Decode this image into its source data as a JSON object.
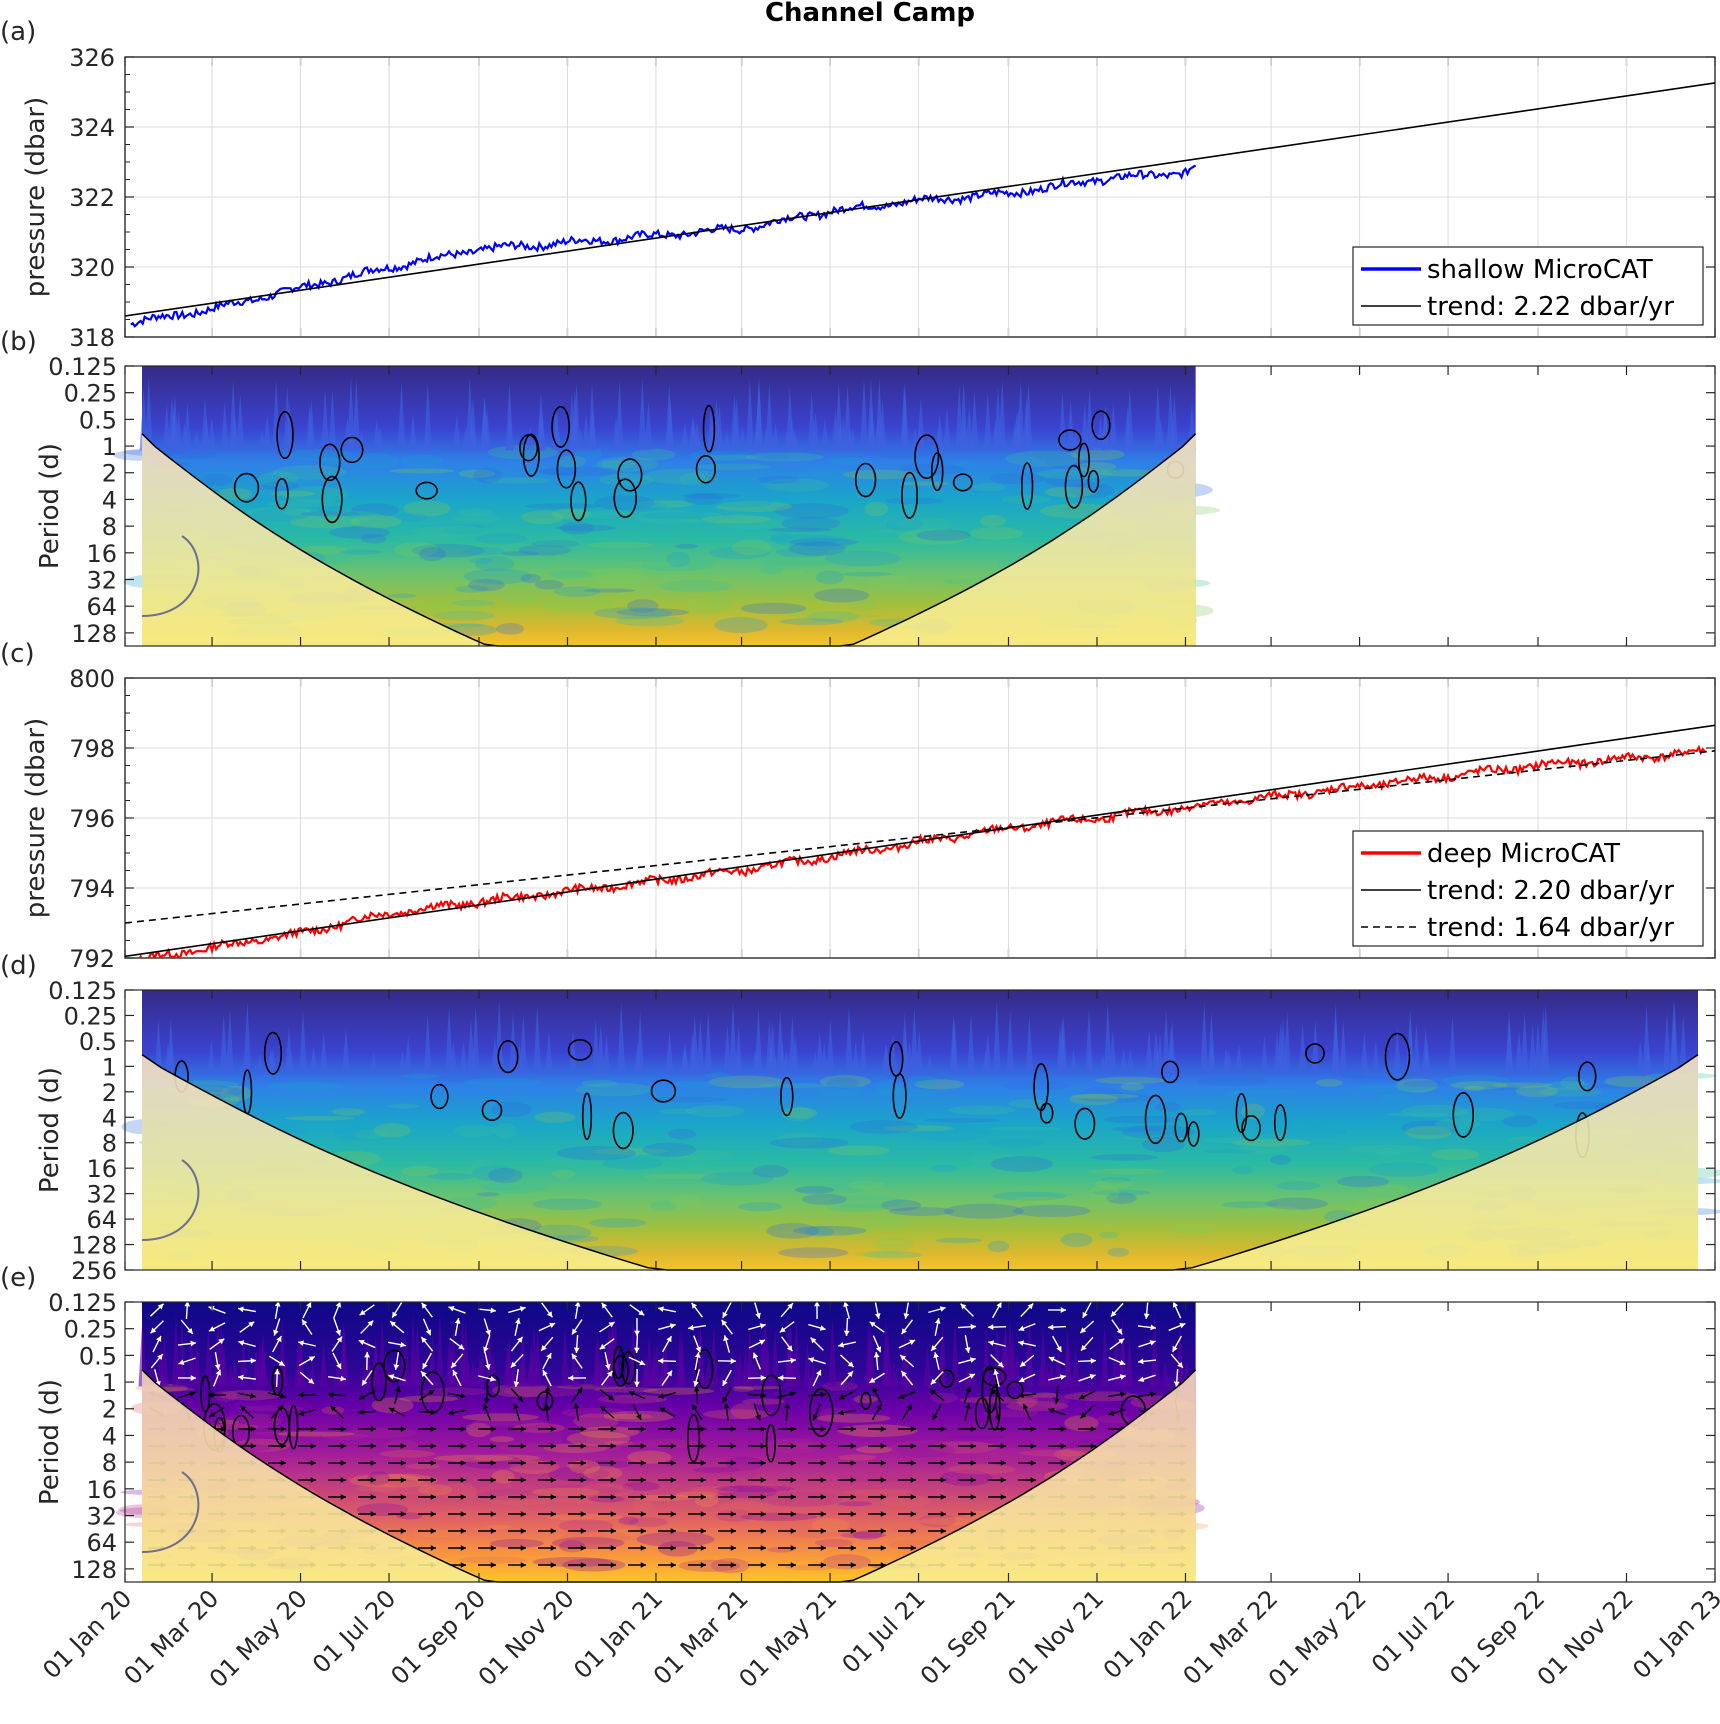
{
  "title": "Channel Camp",
  "x_ticks": [
    "01 Jan 20",
    "01 Mar 20",
    "01 May 20",
    "01 Jul 20",
    "01 Sep 20",
    "01 Nov 20",
    "01 Jan 21",
    "01 Mar 21",
    "01 May 21",
    "01 Jul 21",
    "01 Sep 21",
    "01 Nov 21",
    "01 Jan 22",
    "01 Mar 22",
    "01 May 22",
    "01 Jul 22",
    "01 Sep 22",
    "01 Nov 22",
    "01 Jan 23"
  ],
  "panels": {
    "a": {
      "label": "(a)"
    },
    "b": {
      "label": "(b)"
    },
    "c": {
      "label": "(c)"
    },
    "d": {
      "label": "(d)"
    },
    "e": {
      "label": "(e)"
    }
  },
  "chart_data": [
    {
      "id": "a",
      "type": "line",
      "ylabel": "pressure (dbar)",
      "ylim": [
        318,
        326
      ],
      "yticks": [
        "318",
        "320",
        "322",
        "324",
        "326"
      ],
      "xlim": [
        "2020-01-01",
        "2023-01-01"
      ],
      "grid": true,
      "legend_position": "bottom-right",
      "series": [
        {
          "name": "shallow MicroCAT",
          "color": "#0000ff",
          "x": [
            "2020-01-05",
            "2020-03-01",
            "2020-05-01",
            "2020-07-01",
            "2020-09-01",
            "2020-11-01",
            "2021-01-01",
            "2021-03-01",
            "2021-05-01",
            "2021-07-01",
            "2021-09-01",
            "2021-11-01",
            "2022-01-01",
            "2022-01-08"
          ],
          "y": [
            318.4,
            318.8,
            319.4,
            320.0,
            320.5,
            320.7,
            320.9,
            321.1,
            321.6,
            321.9,
            322.1,
            322.5,
            322.7,
            322.9
          ]
        },
        {
          "name": "trend: 2.22 dbar/yr",
          "color": "#000000",
          "dash": "solid",
          "x": [
            "2020-01-01",
            "2023-01-01"
          ],
          "y": [
            318.6,
            325.26
          ]
        }
      ]
    },
    {
      "id": "b",
      "type": "heatmap",
      "ylabel": "Period (d)",
      "yticks": [
        "0.125",
        "0.25",
        "0.5",
        "1",
        "2",
        "4",
        "8",
        "16",
        "32",
        "64",
        "128"
      ],
      "ylim": [
        0.125,
        180
      ],
      "y_scale": "log2",
      "data_range": [
        "2020-01-01",
        "2022-01-08"
      ],
      "colormap": "parula"
    },
    {
      "id": "c",
      "type": "line",
      "ylabel": "pressure (dbar)",
      "ylim": [
        792,
        800
      ],
      "yticks": [
        "792",
        "794",
        "796",
        "798",
        "800"
      ],
      "xlim": [
        "2020-01-01",
        "2023-01-01"
      ],
      "grid": true,
      "legend_position": "bottom-right",
      "series": [
        {
          "name": "deep MicroCAT",
          "color": "#ff0000",
          "x": [
            "2020-01-05",
            "2020-03-01",
            "2020-05-01",
            "2020-07-01",
            "2020-09-01",
            "2020-11-01",
            "2021-01-01",
            "2021-03-01",
            "2021-05-01",
            "2021-07-01",
            "2021-09-01",
            "2021-11-01",
            "2022-01-01",
            "2022-03-01",
            "2022-05-01",
            "2022-07-01",
            "2022-09-01",
            "2022-11-01",
            "2022-12-25"
          ],
          "y": [
            791.9,
            792.3,
            792.7,
            793.3,
            793.6,
            793.9,
            794.2,
            794.5,
            794.9,
            795.3,
            795.7,
            796.0,
            796.3,
            796.6,
            796.9,
            797.2,
            797.5,
            797.7,
            797.9
          ]
        },
        {
          "name": "trend: 2.20 dbar/yr",
          "color": "#000000",
          "dash": "solid",
          "x": [
            "2020-01-01",
            "2023-01-01"
          ],
          "y": [
            792.05,
            798.65
          ]
        },
        {
          "name": "trend: 1.64 dbar/yr",
          "color": "#000000",
          "dash": "dashed",
          "x": [
            "2020-01-01",
            "2023-01-01"
          ],
          "y": [
            793.0,
            797.92
          ]
        }
      ]
    },
    {
      "id": "d",
      "type": "heatmap",
      "ylabel": "Period (d)",
      "yticks": [
        "0.125",
        "0.25",
        "0.5",
        "1",
        "2",
        "4",
        "8",
        "16",
        "32",
        "64",
        "128",
        "256"
      ],
      "ylim": [
        0.125,
        256
      ],
      "y_scale": "log2",
      "data_range": [
        "2020-01-01",
        "2023-01-01"
      ],
      "colormap": "parula"
    },
    {
      "id": "e",
      "type": "heatmap",
      "ylabel": "Period (d)",
      "yticks": [
        "0.125",
        "0.25",
        "0.5",
        "1",
        "2",
        "4",
        "8",
        "16",
        "32",
        "64",
        "128"
      ],
      "ylim": [
        0.125,
        180
      ],
      "y_scale": "log2",
      "data_range": [
        "2020-01-01",
        "2022-01-08"
      ],
      "colormap": "plasma",
      "overlay": "phase arrows"
    }
  ]
}
